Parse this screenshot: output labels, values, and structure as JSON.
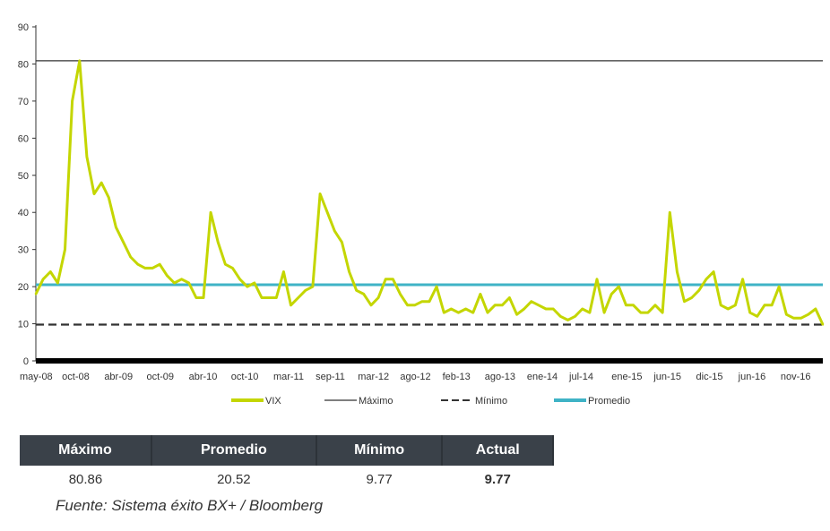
{
  "chart_data": {
    "type": "line",
    "ylim": [
      0,
      90
    ],
    "yticks": [
      0,
      10,
      20,
      30,
      40,
      50,
      60,
      70,
      80,
      90
    ],
    "xtick_labels": [
      "may-08",
      "oct-08",
      "abr-09",
      "oct-09",
      "abr-10",
      "oct-10",
      "mar-11",
      "sep-11",
      "mar-12",
      "ago-12",
      "feb-13",
      "ago-13",
      "ene-14",
      "jul-14",
      "ene-15",
      "jun-15",
      "dic-15",
      "jun-16",
      "nov-16"
    ],
    "series": [
      {
        "name": "VIX",
        "color": "#c4d600",
        "style": "solid",
        "points": [
          [
            "2008-05",
            18
          ],
          [
            "2008-06",
            22
          ],
          [
            "2008-07",
            24
          ],
          [
            "2008-08",
            21
          ],
          [
            "2008-09",
            30
          ],
          [
            "2008-10",
            70
          ],
          [
            "2008-11",
            80.86
          ],
          [
            "2008-12",
            55
          ],
          [
            "2009-01",
            45
          ],
          [
            "2009-02",
            48
          ],
          [
            "2009-03",
            44
          ],
          [
            "2009-04",
            36
          ],
          [
            "2009-05",
            32
          ],
          [
            "2009-06",
            28
          ],
          [
            "2009-07",
            26
          ],
          [
            "2009-08",
            25
          ],
          [
            "2009-09",
            25
          ],
          [
            "2009-10",
            26
          ],
          [
            "2009-11",
            23
          ],
          [
            "2009-12",
            21
          ],
          [
            "2010-01",
            22
          ],
          [
            "2010-02",
            21
          ],
          [
            "2010-03",
            17
          ],
          [
            "2010-04",
            17
          ],
          [
            "2010-05",
            40
          ],
          [
            "2010-06",
            32
          ],
          [
            "2010-07",
            26
          ],
          [
            "2010-08",
            25
          ],
          [
            "2010-09",
            22
          ],
          [
            "2010-10",
            20
          ],
          [
            "2010-11",
            21
          ],
          [
            "2010-12",
            17
          ],
          [
            "2011-01",
            17
          ],
          [
            "2011-02",
            17
          ],
          [
            "2011-03",
            24
          ],
          [
            "2011-04",
            15
          ],
          [
            "2011-05",
            17
          ],
          [
            "2011-06",
            19
          ],
          [
            "2011-07",
            20
          ],
          [
            "2011-08",
            45
          ],
          [
            "2011-09",
            40
          ],
          [
            "2011-10",
            35
          ],
          [
            "2011-11",
            32
          ],
          [
            "2011-12",
            24
          ],
          [
            "2012-01",
            19
          ],
          [
            "2012-02",
            18
          ],
          [
            "2012-03",
            15
          ],
          [
            "2012-04",
            17
          ],
          [
            "2012-05",
            22
          ],
          [
            "2012-06",
            22
          ],
          [
            "2012-07",
            18
          ],
          [
            "2012-08",
            15
          ],
          [
            "2012-09",
            15
          ],
          [
            "2012-10",
            16
          ],
          [
            "2012-11",
            16
          ],
          [
            "2012-12",
            20
          ],
          [
            "2013-01",
            13
          ],
          [
            "2013-02",
            14
          ],
          [
            "2013-03",
            13
          ],
          [
            "2013-04",
            14
          ],
          [
            "2013-05",
            13
          ],
          [
            "2013-06",
            18
          ],
          [
            "2013-07",
            13
          ],
          [
            "2013-08",
            15
          ],
          [
            "2013-09",
            15
          ],
          [
            "2013-10",
            17
          ],
          [
            "2013-11",
            12.5
          ],
          [
            "2013-12",
            14
          ],
          [
            "2014-01",
            16
          ],
          [
            "2014-02",
            15
          ],
          [
            "2014-03",
            14
          ],
          [
            "2014-04",
            14
          ],
          [
            "2014-05",
            12
          ],
          [
            "2014-06",
            11
          ],
          [
            "2014-07",
            12
          ],
          [
            "2014-08",
            14
          ],
          [
            "2014-09",
            13
          ],
          [
            "2014-10",
            22
          ],
          [
            "2014-11",
            13
          ],
          [
            "2014-12",
            18
          ],
          [
            "2015-01",
            20
          ],
          [
            "2015-02",
            15
          ],
          [
            "2015-03",
            15
          ],
          [
            "2015-04",
            13
          ],
          [
            "2015-05",
            13
          ],
          [
            "2015-06",
            15
          ],
          [
            "2015-07",
            13
          ],
          [
            "2015-08",
            40
          ],
          [
            "2015-09",
            24
          ],
          [
            "2015-10",
            16
          ],
          [
            "2015-11",
            17
          ],
          [
            "2015-12",
            19
          ],
          [
            "2016-01",
            22
          ],
          [
            "2016-02",
            24
          ],
          [
            "2016-03",
            15
          ],
          [
            "2016-04",
            14
          ],
          [
            "2016-05",
            15
          ],
          [
            "2016-06",
            22
          ],
          [
            "2016-07",
            13
          ],
          [
            "2016-08",
            12
          ],
          [
            "2016-09",
            15
          ],
          [
            "2016-10",
            15
          ],
          [
            "2016-11",
            20
          ],
          [
            "2016-12",
            12.5
          ],
          [
            "2017-01",
            11.5
          ],
          [
            "2017-02",
            11.5
          ],
          [
            "2017-03",
            12.5
          ],
          [
            "2017-04",
            14
          ],
          [
            "2017-05",
            9.77
          ]
        ]
      },
      {
        "name": "Máximo",
        "color": "#333333",
        "style": "solid",
        "value": 80.86
      },
      {
        "name": "Mínimo",
        "color": "#333333",
        "style": "dashed",
        "value": 9.77
      },
      {
        "name": "Promedio",
        "color": "#3fb3c6",
        "style": "solid",
        "value": 20.52
      }
    ],
    "legend": "bottom"
  },
  "stats_table": {
    "headers": [
      "Máximo",
      "Promedio",
      "Mínimo",
      "Actual"
    ],
    "values": [
      "80.86",
      "20.52",
      "9.77",
      "9.77"
    ]
  },
  "source": "Fuente: Sistema éxito BX+ / Bloomberg"
}
